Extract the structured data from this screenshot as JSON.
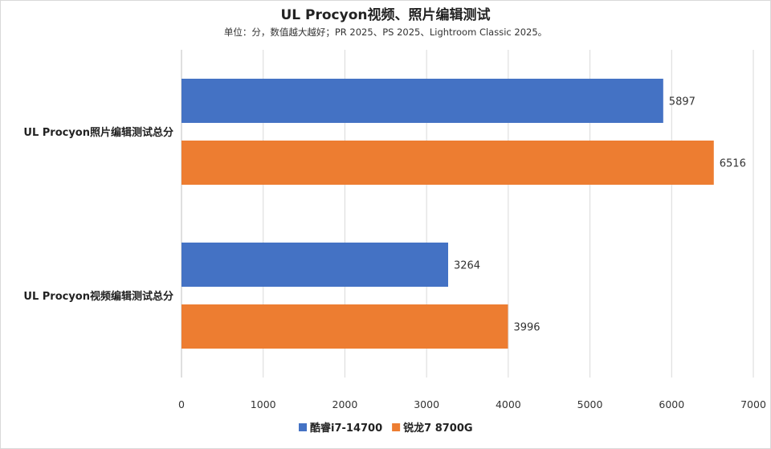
{
  "chart_data": {
    "type": "bar",
    "orientation": "horizontal",
    "title": "UL Procyon视频、照片编辑测试",
    "subtitle": "单位：分，数值越大越好；PR 2025、PS 2025、Lightroom Classic 2025。",
    "categories": [
      "UL Procyon照片编辑测试总分",
      "UL Procyon视频编辑测试总分"
    ],
    "series": [
      {
        "name": "酷睿i7-14700",
        "color": "#4472c4",
        "values": [
          5897,
          3264
        ]
      },
      {
        "name": "锐龙7 8700G",
        "color": "#ed7d31",
        "values": [
          6516,
          3996
        ]
      }
    ],
    "xlim": [
      0,
      7000
    ],
    "xticks": [
      "0",
      "1000",
      "2000",
      "3000",
      "4000",
      "5000",
      "6000",
      "7000"
    ],
    "grid": true,
    "legend_position": "bottom"
  }
}
